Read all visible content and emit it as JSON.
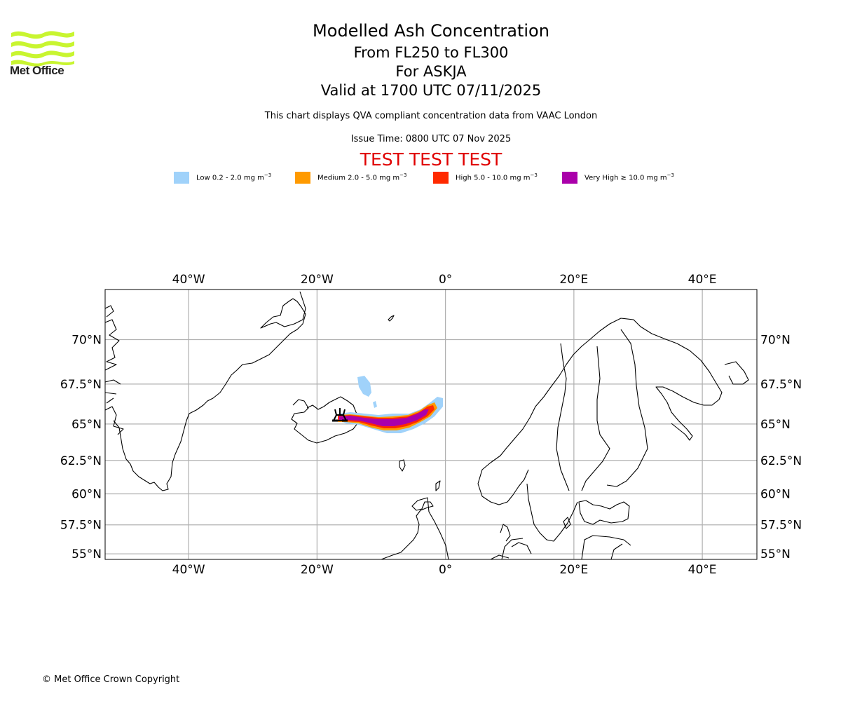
{
  "logo": {
    "name": "Met Office",
    "icon": "met-office-waves-icon",
    "color": "#c8f530"
  },
  "header": {
    "title": "Modelled Ash Concentration",
    "level_range": "From FL250 to FL300",
    "volcano": "For ASKJA",
    "valid_time": "Valid at 1700 UTC 07/11/2025",
    "description": "This chart displays QVA compliant concentration data from VAAC London",
    "issue_time": "Issue Time: 0800 UTC 07 Nov 2025",
    "test_banner": "TEST TEST TEST",
    "test_banner_color": "#e00000"
  },
  "legend": [
    {
      "label": "Low 0.2 - 2.0 mg m",
      "unit_exp": "−3",
      "color": "#a0d2fa"
    },
    {
      "label": "Medium 2.0 - 5.0 mg m",
      "unit_exp": "−3",
      "color": "#ff9a00"
    },
    {
      "label": "High 5.0 - 10.0 mg m",
      "unit_exp": "−3",
      "color": "#ff2a00"
    },
    {
      "label": "Very High ≥ 10.0 mg m",
      "unit_exp": "−3",
      "color": "#aa00aa"
    }
  ],
  "chart_data": {
    "type": "map",
    "title": "Modelled Ash Concentration",
    "projection": "Mercator",
    "extent": {
      "lon": [
        -53,
        48.5
      ],
      "lat": [
        54.5,
        72.5
      ]
    },
    "grid": true,
    "x_ticks": [
      "40°W",
      "20°W",
      "0°",
      "20°E",
      "40°E"
    ],
    "x_tick_values": [
      -40,
      -20,
      0,
      20,
      40
    ],
    "y_ticks": [
      "55°N",
      "57.5°N",
      "60°N",
      "62.5°N",
      "65°N",
      "67.5°N",
      "70°N"
    ],
    "y_tick_values": [
      55,
      57.5,
      60,
      62.5,
      65,
      67.5,
      70
    ],
    "volcano_marker": {
      "name": "ASKJA",
      "icon": "volcano-icon",
      "lon": -16.5,
      "lat": 65.0
    },
    "ash_plume": {
      "direction": "eastward from Askja toward the Norwegian Sea",
      "lon_range": [
        -16.5,
        -0.5
      ],
      "lat_range": [
        64.2,
        67.8
      ],
      "levels": [
        "Low",
        "Medium",
        "High",
        "Very High"
      ]
    },
    "regions_shown": [
      "Greenland",
      "Iceland",
      "Scandinavia",
      "Finland",
      "Kola Peninsula",
      "Scotland",
      "Faroe Islands",
      "Baltic States",
      "Denmark"
    ]
  },
  "footer": {
    "copyright": "© Met Office Crown Copyright"
  }
}
